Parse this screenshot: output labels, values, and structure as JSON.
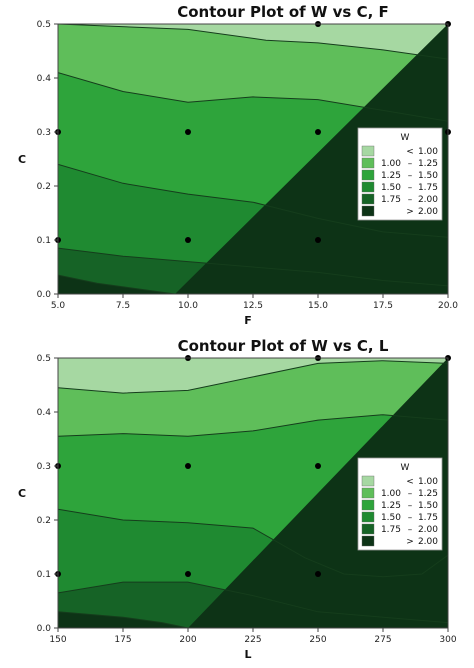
{
  "chart_data": [
    {
      "type": "contour",
      "title": "Contour Plot of W vs C, F",
      "xlabel": "F",
      "ylabel": "C",
      "xlim": [
        5,
        20
      ],
      "ylim": [
        0,
        0.5
      ],
      "xticks": [
        "5.0",
        "7.5",
        "10.0",
        "12.5",
        "15.0",
        "17.5",
        "20.0"
      ],
      "yticks": [
        "0.0",
        "0.1",
        "0.2",
        "0.3",
        "0.4",
        "0.5"
      ],
      "legend_title": "W",
      "legend_position": "right",
      "legend": [
        {
          "op": "<",
          "lo": "",
          "hi": "1.00",
          "color": "#a6d8a2"
        },
        {
          "op": "–",
          "lo": "1.00",
          "hi": "1.25",
          "color": "#5fbe5a"
        },
        {
          "op": "–",
          "lo": "1.25",
          "hi": "1.50",
          "color": "#2ea43b"
        },
        {
          "op": "–",
          "lo": "1.50",
          "hi": "1.75",
          "color": "#1f8a31"
        },
        {
          "op": "–",
          "lo": "1.75",
          "hi": "2.00",
          "color": "#166326"
        },
        {
          "op": ">",
          "lo": "",
          "hi": "2.00",
          "color": "#0d3316"
        }
      ],
      "design_points": [
        [
          5,
          0.3
        ],
        [
          5,
          0.1
        ],
        [
          10,
          0.3
        ],
        [
          10,
          0.1
        ],
        [
          15,
          0.3
        ],
        [
          15,
          0.1
        ],
        [
          15,
          0.5
        ],
        [
          20,
          0.3
        ],
        [
          20,
          0.5
        ]
      ],
      "contour_lines": [
        {
          "level": 1.0,
          "points": [
            [
              5,
              0.5
            ],
            [
              10,
              0.49
            ],
            [
              13,
              0.47
            ],
            [
              15,
              0.465
            ],
            [
              17.5,
              0.452
            ],
            [
              20,
              0.435
            ]
          ]
        },
        {
          "level": 1.25,
          "points": [
            [
              5,
              0.41
            ],
            [
              7.5,
              0.375
            ],
            [
              10,
              0.355
            ],
            [
              12.5,
              0.365
            ],
            [
              15,
              0.36
            ],
            [
              17.5,
              0.34
            ],
            [
              20,
              0.32
            ]
          ]
        },
        {
          "level": 1.5,
          "points": [
            [
              5,
              0.24
            ],
            [
              7.5,
              0.205
            ],
            [
              10,
              0.185
            ],
            [
              12.5,
              0.17
            ],
            [
              15,
              0.14
            ],
            [
              17.5,
              0.115
            ],
            [
              20,
              0.105
            ]
          ]
        },
        {
          "level": 1.75,
          "points": [
            [
              5,
              0.085
            ],
            [
              7.5,
              0.07
            ],
            [
              10,
              0.06
            ],
            [
              12.5,
              0.05
            ],
            [
              15,
              0.04
            ],
            [
              17.5,
              0.025
            ],
            [
              20,
              0.015
            ]
          ]
        },
        {
          "level": 2.0,
          "points": [
            [
              5,
              0.035
            ],
            [
              6.5,
              0.02
            ],
            [
              8,
              0.01
            ],
            [
              9.5,
              0
            ]
          ]
        }
      ]
    },
    {
      "type": "contour",
      "title": "Contour Plot of W vs C, L",
      "xlabel": "L",
      "ylabel": "C",
      "xlim": [
        150,
        300
      ],
      "ylim": [
        0,
        0.5
      ],
      "xticks": [
        "150",
        "175",
        "200",
        "225",
        "250",
        "275",
        "300"
      ],
      "yticks": [
        "0.0",
        "0.1",
        "0.2",
        "0.3",
        "0.4",
        "0.5"
      ],
      "legend_title": "W",
      "legend_position": "right",
      "legend": [
        {
          "op": "<",
          "lo": "",
          "hi": "1.00",
          "color": "#a6d8a2"
        },
        {
          "op": "–",
          "lo": "1.00",
          "hi": "1.25",
          "color": "#5fbe5a"
        },
        {
          "op": "–",
          "lo": "1.25",
          "hi": "1.50",
          "color": "#2ea43b"
        },
        {
          "op": "–",
          "lo": "1.50",
          "hi": "1.75",
          "color": "#1f8a31"
        },
        {
          "op": "–",
          "lo": "1.75",
          "hi": "2.00",
          "color": "#166326"
        },
        {
          "op": ">",
          "lo": "",
          "hi": "2.00",
          "color": "#0d3316"
        }
      ],
      "design_points": [
        [
          150,
          0.3
        ],
        [
          150,
          0.1
        ],
        [
          200,
          0.3
        ],
        [
          200,
          0.1
        ],
        [
          200,
          0.5
        ],
        [
          250,
          0.3
        ],
        [
          250,
          0.1
        ],
        [
          250,
          0.5
        ],
        [
          300,
          0.5
        ]
      ],
      "contour_lines": [
        {
          "level": 1.0,
          "points": [
            [
              150,
              0.445
            ],
            [
              175,
              0.435
            ],
            [
              200,
              0.44
            ],
            [
              225,
              0.465
            ],
            [
              250,
              0.49
            ],
            [
              275,
              0.495
            ],
            [
              300,
              0.49
            ]
          ]
        },
        {
          "level": 1.25,
          "points": [
            [
              150,
              0.355
            ],
            [
              175,
              0.36
            ],
            [
              200,
              0.355
            ],
            [
              225,
              0.365
            ],
            [
              250,
              0.385
            ],
            [
              275,
              0.395
            ],
            [
              300,
              0.385
            ]
          ]
        },
        {
          "level": 1.5,
          "points": [
            [
              150,
              0.22
            ],
            [
              175,
              0.2
            ],
            [
              200,
              0.195
            ],
            [
              225,
              0.185
            ],
            [
              245,
              0.13
            ],
            [
              260,
              0.1
            ],
            [
              275,
              0.095
            ],
            [
              290,
              0.1
            ],
            [
              300,
              0.135
            ]
          ]
        },
        {
          "level": 1.75,
          "points": [
            [
              150,
              0.065
            ],
            [
              175,
              0.085
            ],
            [
              200,
              0.085
            ],
            [
              225,
              0.06
            ],
            [
              250,
              0.03
            ],
            [
              275,
              0.02
            ],
            [
              300,
              0.01
            ]
          ]
        },
        {
          "level": 2.0,
          "points": [
            [
              150,
              0.03
            ],
            [
              175,
              0.02
            ],
            [
              190,
              0.01
            ],
            [
              200,
              0
            ]
          ]
        }
      ]
    }
  ]
}
